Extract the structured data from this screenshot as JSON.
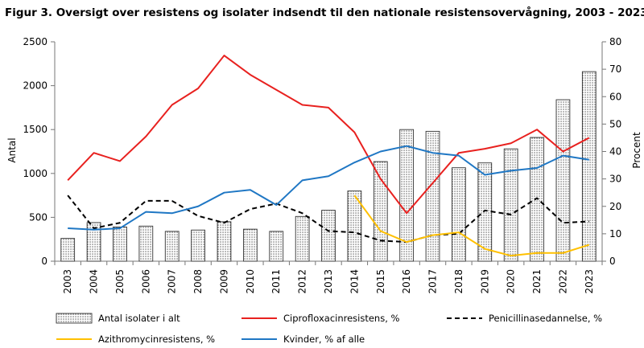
{
  "chart_data": {
    "type": "bar+line",
    "title": "Figur 3. Oversigt over resistens  og isolater indsendt til den nationale resistensovervågning,  2003 - 2023",
    "ylabel_left": "Antal",
    "ylabel_right": "Procent",
    "ylim_left": [
      0,
      2500
    ],
    "ylim_right": [
      0,
      80
    ],
    "yticks_left": [
      0,
      500,
      1000,
      1500,
      2000,
      2500
    ],
    "yticks_right": [
      0,
      10,
      20,
      30,
      40,
      50,
      60,
      70,
      80
    ],
    "categories": [
      "2003",
      "2004",
      "2005",
      "2006",
      "2007",
      "2008",
      "2009",
      "2010",
      "2011",
      "2012",
      "2013",
      "2014",
      "2015",
      "2016",
      "2017",
      "2018",
      "2019",
      "2020",
      "2021",
      "2022",
      "2023"
    ],
    "bars": {
      "name": "Antal isolater i alt",
      "axis": "left",
      "values": [
        260,
        440,
        390,
        400,
        340,
        355,
        450,
        365,
        340,
        510,
        580,
        800,
        1135,
        1500,
        1480,
        1065,
        1120,
        1280,
        1410,
        1840,
        2160
      ]
    },
    "series": [
      {
        "name": "Ciprofloxacinresistens, %",
        "axis": "right",
        "color": "#e8211f",
        "dash": "solid",
        "values": [
          29.5,
          39.5,
          36.5,
          45.5,
          57,
          63,
          75,
          68,
          62.5,
          57,
          56,
          47,
          30,
          17.5,
          28.5,
          39.5,
          41,
          43,
          48,
          40,
          45
        ]
      },
      {
        "name": "Penicillinasedannelse, %",
        "axis": "right",
        "color": "#000000",
        "dash": "dashed",
        "values": [
          24,
          12,
          14,
          22,
          22,
          16.5,
          14,
          19,
          21,
          17.5,
          11,
          10.5,
          7.5,
          7,
          9.5,
          10,
          18.5,
          17,
          23,
          14,
          14.5
        ]
      },
      {
        "name": "Azithromycinresistens, %",
        "axis": "right",
        "color": "#ffc000",
        "dash": "solid",
        "values": [
          null,
          null,
          null,
          null,
          null,
          null,
          null,
          null,
          null,
          null,
          null,
          24,
          11,
          7,
          9.5,
          10.5,
          4.5,
          2,
          3,
          3,
          6
        ]
      },
      {
        "name": "Kvinder, % af alle",
        "axis": "right",
        "color": "#1f77c4",
        "dash": "solid",
        "values": [
          12,
          11.5,
          12,
          18,
          17.5,
          20,
          25,
          26,
          20.5,
          29.5,
          31,
          36,
          40,
          42,
          39.5,
          38.5,
          31.5,
          33,
          34,
          38.5,
          37
        ]
      }
    ],
    "legend_position": "bottom"
  }
}
